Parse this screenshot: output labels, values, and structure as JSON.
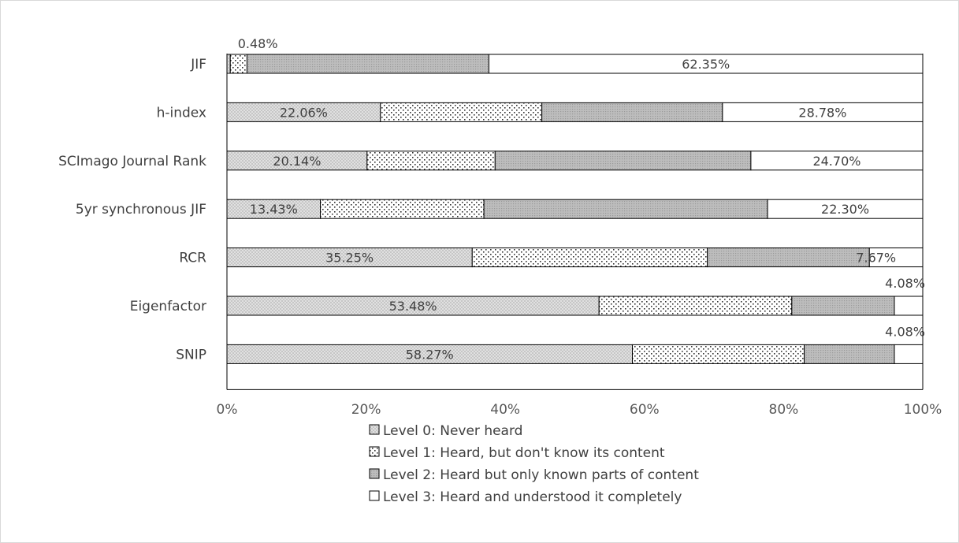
{
  "chart_data": {
    "type": "bar",
    "orientation": "horizontal",
    "stacked": true,
    "percent_stacked": true,
    "categories": [
      "JIF",
      "h-index",
      "SCImago Journal Rank",
      "5yr synchronous  JIF",
      "RCR",
      "Eigenfactor",
      "SNIP"
    ],
    "series": [
      {
        "name": "Level 0: Never heard",
        "values": [
          0.48,
          22.06,
          20.14,
          13.43,
          35.25,
          53.48,
          58.27
        ],
        "pattern": "fine-cross",
        "color": "#d9d9d9"
      },
      {
        "name": "Level 1: Heard, but don't know its content",
        "values": [
          2.4,
          23.2,
          18.4,
          23.5,
          33.8,
          27.7,
          24.7
        ],
        "pattern": "dots",
        "color": "#ffffff"
      },
      {
        "name": "Level 2: Heard but only known parts of content",
        "values": [
          34.77,
          25.96,
          36.76,
          40.77,
          23.28,
          14.74,
          12.95
        ],
        "pattern": "dense-dots",
        "color": "#b4b4b4"
      },
      {
        "name": "Level 3: Heard and understood it completely",
        "values": [
          62.35,
          28.78,
          24.7,
          22.3,
          7.67,
          4.08,
          4.08
        ],
        "pattern": "solid",
        "color": "#ffffff"
      }
    ],
    "data_labels": [
      {
        "category": "JIF",
        "series": 0,
        "text": "0.48%"
      },
      {
        "category": "JIF",
        "series": 3,
        "text": "62.35%"
      },
      {
        "category": "h-index",
        "series": 0,
        "text": "22.06%"
      },
      {
        "category": "h-index",
        "series": 3,
        "text": "28.78%"
      },
      {
        "category": "SCImago Journal Rank",
        "series": 0,
        "text": "20.14%"
      },
      {
        "category": "SCImago Journal Rank",
        "series": 3,
        "text": "24.70%"
      },
      {
        "category": "5yr synchronous  JIF",
        "series": 0,
        "text": "13.43%"
      },
      {
        "category": "5yr synchronous  JIF",
        "series": 3,
        "text": "22.30%"
      },
      {
        "category": "RCR",
        "series": 0,
        "text": "35.25%"
      },
      {
        "category": "RCR",
        "series": 3,
        "text": "7.67%"
      },
      {
        "category": "Eigenfactor",
        "series": 0,
        "text": "53.48%"
      },
      {
        "category": "Eigenfactor",
        "series": 3,
        "text": "4.08%"
      },
      {
        "category": "SNIP",
        "series": 0,
        "text": "58.27%"
      },
      {
        "category": "SNIP",
        "series": 3,
        "text": "4.08%"
      }
    ],
    "x_ticks": [
      "0%",
      "20%",
      "40%",
      "60%",
      "80%",
      "100%"
    ],
    "xlim": [
      0,
      100
    ],
    "title": "",
    "xlabel": "",
    "ylabel": "",
    "grid": false,
    "legend_position": "bottom",
    "colors": {
      "text": "#404040",
      "tick": "#595959",
      "border": "#000000",
      "frame": "#d9d9d9"
    }
  }
}
